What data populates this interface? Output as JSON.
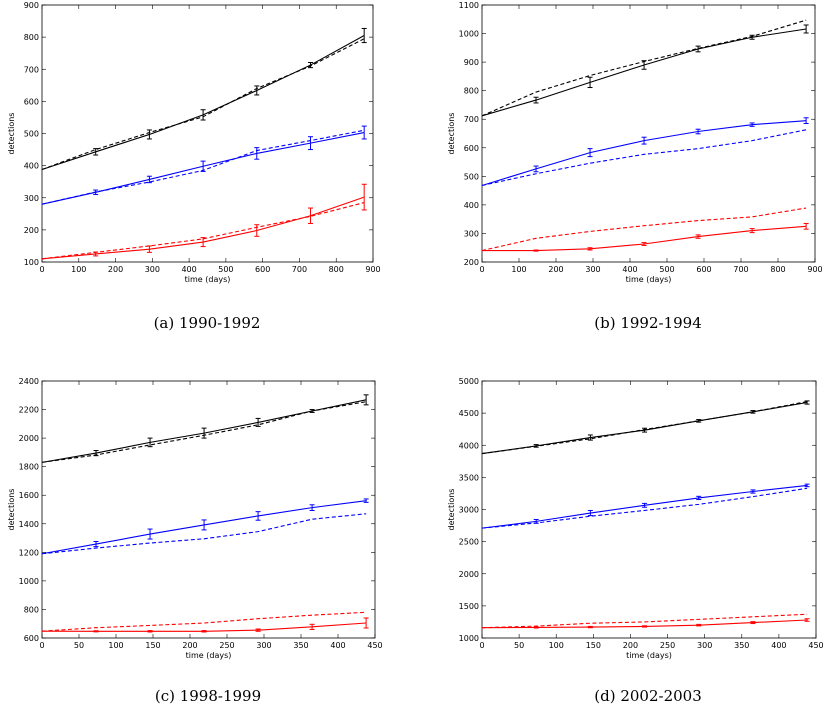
{
  "chart_data": [
    {
      "type": "line",
      "caption": "(a) 1990-1992",
      "xlabel": "time (days)",
      "ylabel": "detections",
      "xlim": [
        0,
        900
      ],
      "ylim": [
        100,
        900
      ],
      "xticks": [
        0,
        100,
        200,
        300,
        400,
        500,
        600,
        700,
        800,
        900
      ],
      "yticks": [
        100,
        200,
        300,
        400,
        500,
        600,
        700,
        800,
        900
      ],
      "x": [
        0,
        146,
        292,
        438,
        584,
        730,
        876
      ],
      "series": [
        {
          "color": "#000000",
          "style": "solid",
          "values": [
            388,
            443,
            497,
            558,
            634,
            713,
            805
          ],
          "errors": [
            0,
            10,
            14,
            16,
            14,
            8,
            22
          ]
        },
        {
          "color": "#000000",
          "style": "dashed",
          "values": [
            388,
            450,
            503,
            552,
            640,
            710,
            795
          ]
        },
        {
          "color": "#0000ff",
          "style": "solid",
          "values": [
            280,
            317,
            357,
            398,
            438,
            470,
            503
          ],
          "errors": [
            0,
            7,
            10,
            16,
            18,
            20,
            20
          ]
        },
        {
          "color": "#0000ff",
          "style": "dashed",
          "values": [
            280,
            318,
            349,
            385,
            447,
            478,
            510
          ]
        },
        {
          "color": "#ff0000",
          "style": "solid",
          "values": [
            110,
            125,
            140,
            162,
            198,
            244,
            302
          ],
          "errors": [
            0,
            6,
            10,
            14,
            18,
            24,
            40
          ]
        },
        {
          "color": "#ff0000",
          "style": "dashed",
          "values": [
            110,
            130,
            150,
            172,
            208,
            242,
            285
          ]
        }
      ]
    },
    {
      "type": "line",
      "caption": "(b) 1992-1994",
      "xlabel": "time (days)",
      "ylabel": "detections",
      "xlim": [
        0,
        900
      ],
      "ylim": [
        200,
        1100
      ],
      "xticks": [
        0,
        100,
        200,
        300,
        400,
        500,
        600,
        700,
        800,
        900
      ],
      "yticks": [
        200,
        300,
        400,
        500,
        600,
        700,
        800,
        900,
        1000,
        1100
      ],
      "x": [
        0,
        146,
        292,
        438,
        584,
        730,
        876
      ],
      "series": [
        {
          "color": "#000000",
          "style": "solid",
          "values": [
            712,
            767,
            829,
            890,
            946,
            987,
            1016
          ],
          "errors": [
            0,
            10,
            18,
            15,
            10,
            7,
            14
          ]
        },
        {
          "color": "#000000",
          "style": "dashed",
          "values": [
            712,
            795,
            853,
            902,
            948,
            990,
            1047
          ]
        },
        {
          "color": "#0000ff",
          "style": "solid",
          "values": [
            468,
            526,
            583,
            625,
            657,
            681,
            695
          ],
          "errors": [
            0,
            10,
            14,
            12,
            8,
            6,
            10
          ]
        },
        {
          "color": "#0000ff",
          "style": "dashed",
          "values": [
            468,
            509,
            546,
            577,
            597,
            625,
            663
          ]
        },
        {
          "color": "#ff0000",
          "style": "solid",
          "values": [
            240,
            240,
            246,
            263,
            289,
            310,
            325
          ],
          "errors": [
            0,
            2,
            4,
            5,
            6,
            7,
            10
          ]
        },
        {
          "color": "#ff0000",
          "style": "dashed",
          "values": [
            240,
            283,
            307,
            327,
            345,
            358,
            389
          ]
        }
      ]
    },
    {
      "type": "line",
      "caption": "(c) 1998-1999",
      "xlabel": "time (days)",
      "ylabel": "detections",
      "xlim": [
        0,
        450
      ],
      "ylim": [
        600,
        2400
      ],
      "xticks": [
        0,
        50,
        100,
        150,
        200,
        250,
        300,
        350,
        400,
        450
      ],
      "yticks": [
        600,
        800,
        1000,
        1200,
        1400,
        1600,
        1800,
        2000,
        2200,
        2400
      ],
      "x": [
        0,
        73,
        146,
        219,
        292,
        365,
        438
      ],
      "series": [
        {
          "color": "#000000",
          "style": "solid",
          "values": [
            1830,
            1895,
            1970,
            2035,
            2110,
            2190,
            2268
          ],
          "errors": [
            0,
            18,
            30,
            35,
            28,
            10,
            35
          ]
        },
        {
          "color": "#000000",
          "style": "dashed",
          "values": [
            1830,
            1882,
            1952,
            2020,
            2093,
            2190,
            2255
          ]
        },
        {
          "color": "#0000ff",
          "style": "solid",
          "values": [
            1190,
            1258,
            1328,
            1392,
            1455,
            1513,
            1562
          ],
          "errors": [
            0,
            18,
            35,
            35,
            30,
            20,
            12
          ]
        },
        {
          "color": "#0000ff",
          "style": "dashed",
          "values": [
            1190,
            1230,
            1265,
            1295,
            1345,
            1432,
            1470
          ]
        },
        {
          "color": "#ff0000",
          "style": "solid",
          "values": [
            648,
            647,
            647,
            647,
            655,
            678,
            705
          ],
          "errors": [
            0,
            4,
            5,
            5,
            8,
            18,
            35
          ]
        },
        {
          "color": "#ff0000",
          "style": "dashed",
          "values": [
            648,
            672,
            688,
            705,
            735,
            760,
            780
          ]
        }
      ]
    },
    {
      "type": "line",
      "caption": "(d) 2002-2003",
      "xlabel": "time (days)",
      "ylabel": "detections",
      "xlim": [
        0,
        450
      ],
      "ylim": [
        1000,
        5000
      ],
      "xticks": [
        0,
        50,
        100,
        150,
        200,
        250,
        300,
        350,
        400,
        450
      ],
      "yticks": [
        1000,
        1500,
        2000,
        2500,
        3000,
        3500,
        4000,
        4500,
        5000
      ],
      "x": [
        0,
        73,
        146,
        219,
        292,
        365,
        438
      ],
      "series": [
        {
          "color": "#000000",
          "style": "solid",
          "values": [
            3870,
            3990,
            4120,
            4235,
            4380,
            4520,
            4665
          ],
          "errors": [
            0,
            20,
            40,
            30,
            20,
            20,
            25
          ]
        },
        {
          "color": "#000000",
          "style": "dashed",
          "values": [
            3870,
            3985,
            4100,
            4245,
            4380,
            4520,
            4680
          ]
        },
        {
          "color": "#0000ff",
          "style": "solid",
          "values": [
            2710,
            2815,
            2945,
            3065,
            3180,
            3280,
            3375
          ],
          "errors": [
            0,
            30,
            40,
            30,
            25,
            25,
            20
          ]
        },
        {
          "color": "#0000ff",
          "style": "dashed",
          "values": [
            2710,
            2790,
            2895,
            2985,
            3080,
            3200,
            3330
          ]
        },
        {
          "color": "#ff0000",
          "style": "solid",
          "values": [
            1160,
            1165,
            1170,
            1180,
            1200,
            1240,
            1280
          ],
          "errors": [
            0,
            10,
            10,
            10,
            12,
            15,
            20
          ]
        },
        {
          "color": "#ff0000",
          "style": "dashed",
          "values": [
            1160,
            1185,
            1230,
            1250,
            1290,
            1330,
            1370
          ]
        }
      ]
    }
  ]
}
